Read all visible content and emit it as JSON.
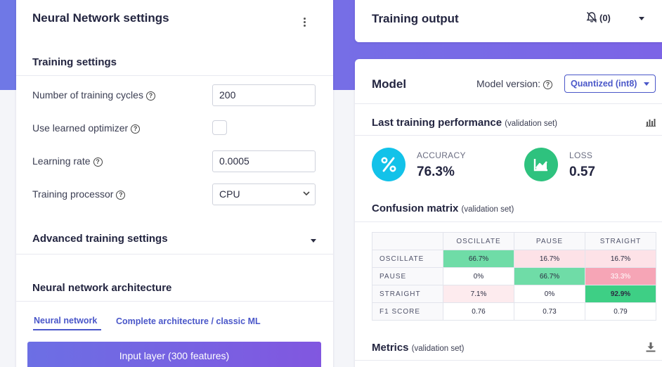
{
  "left_panel": {
    "title": "Neural Network settings",
    "training_settings": {
      "heading": "Training settings",
      "cycles_label": "Number of training cycles",
      "cycles_value": "200",
      "optimizer_label": "Use learned optimizer",
      "learning_rate_label": "Learning rate",
      "learning_rate_value": "0.0005",
      "processor_label": "Training processor",
      "processor_value": "CPU"
    },
    "advanced_heading": "Advanced training settings",
    "architecture": {
      "heading": "Neural network architecture",
      "tabs": [
        "Neural network",
        "Complete architecture / classic ML"
      ],
      "input_layer": "Input layer (300 features)"
    }
  },
  "training_output": {
    "title": "Training output",
    "notification_count": "(0)"
  },
  "model": {
    "title": "Model",
    "version_label": "Model version:",
    "version_value": "Quantized (int8)",
    "performance_heading": "Last training performance",
    "performance_sub": "(validation set)",
    "accuracy": {
      "label": "ACCURACY",
      "value": "76.3%",
      "icon": "percent-icon",
      "color": "#12c2e9"
    },
    "loss": {
      "label": "LOSS",
      "value": "0.57",
      "icon": "trend-chart-icon",
      "color": "#2ec27e"
    },
    "confusion_heading": "Confusion matrix",
    "confusion_sub": "(validation set)",
    "confusion": {
      "columns": [
        "OSCILLATE",
        "PAUSE",
        "STRAIGHT"
      ],
      "rows": [
        {
          "label": "OSCILLATE",
          "cells": [
            "66.7%",
            "16.7%",
            "16.7%"
          ]
        },
        {
          "label": "PAUSE",
          "cells": [
            "0%",
            "66.7%",
            "33.3%"
          ]
        },
        {
          "label": "STRAIGHT",
          "cells": [
            "7.1%",
            "0%",
            "92.9%"
          ]
        },
        {
          "label": "F1 SCORE",
          "cells": [
            "0.76",
            "0.73",
            "0.79"
          ]
        }
      ]
    },
    "metrics_heading": "Metrics",
    "metrics_sub": "(validation set)"
  }
}
